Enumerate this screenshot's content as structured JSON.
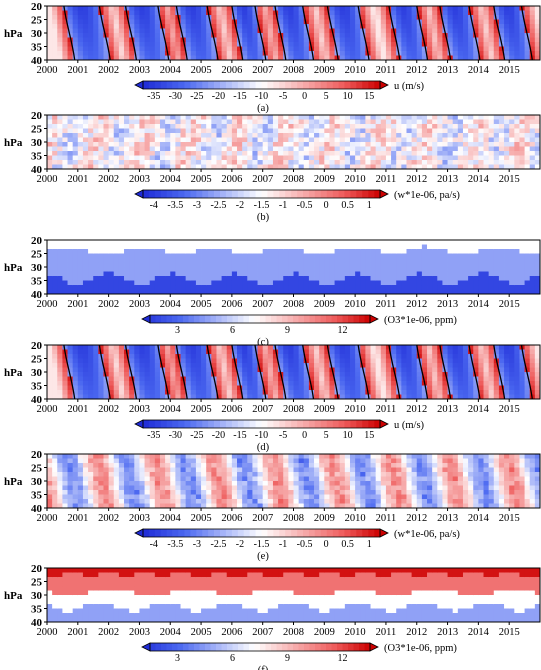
{
  "chart_data": [
    {
      "id": "a",
      "type": "heatmap",
      "caption": "(a)",
      "variable": "u",
      "ylabel": "hPa",
      "yticks": [
        "20",
        "25",
        "30",
        "35",
        "40"
      ],
      "xticks": [
        "2000",
        "2001",
        "2002",
        "2003",
        "2004",
        "2005",
        "2006",
        "2007",
        "2008",
        "2009",
        "2010",
        "2011",
        "2012",
        "2013",
        "2014",
        "2015"
      ],
      "colorbar_labels": [
        "-35",
        "-30",
        "-25",
        "-20",
        "-15",
        "-10",
        "-5",
        "0",
        "5",
        "10",
        "15"
      ],
      "colorbar_title": "u (m/s)",
      "colorbar_range": [
        -40,
        20
      ],
      "pattern": "qbo",
      "easterly_periods": [
        [
          2000.55,
          2001.7
        ],
        [
          2002.55,
          2003.6
        ],
        [
          2004.2,
          2005.2
        ],
        [
          2006.0,
          2006.75
        ],
        [
          2007.4,
          2008.3
        ],
        [
          2009.1,
          2010.1
        ],
        [
          2011.1,
          2012.0
        ],
        [
          2012.75,
          2013.7
        ],
        [
          2014.5,
          2015.4
        ]
      ]
    },
    {
      "id": "b",
      "type": "heatmap",
      "caption": "(b)",
      "variable": "w*1e-06",
      "ylabel": "hPa",
      "yticks": [
        "20",
        "25",
        "30",
        "35",
        "40"
      ],
      "xticks": [
        "2000",
        "2001",
        "2002",
        "2003",
        "2004",
        "2005",
        "2006",
        "2007",
        "2008",
        "2009",
        "2010",
        "2011",
        "2012",
        "2013",
        "2014",
        "2015"
      ],
      "colorbar_labels": [
        "-4",
        "-3.5",
        "-3",
        "-2.5",
        "-2",
        "-1.5",
        "-1",
        "-0.5",
        "0",
        "0.5",
        "1"
      ],
      "colorbar_title": "(w*1e-06, pa/s)",
      "colorbar_range": [
        -4.5,
        1.5
      ],
      "pattern": "weak"
    },
    {
      "id": "c",
      "type": "heatmap",
      "caption": "(c)",
      "variable": "O3*1e-06",
      "ylabel": "hPa",
      "yticks": [
        "20",
        "25",
        "30",
        "35",
        "40"
      ],
      "xticks": [
        "2000",
        "2001",
        "2002",
        "2003",
        "2004",
        "2005",
        "2006",
        "2007",
        "2008",
        "2009",
        "2010",
        "2011",
        "2012",
        "2013",
        "2014",
        "2015"
      ],
      "colorbar_labels": [
        "3",
        "6",
        "9",
        "12"
      ],
      "colorbar_title": "(O3*1e-06, ppm)",
      "colorbar_range": [
        1.5,
        13.5
      ],
      "pattern": "layered-low"
    },
    {
      "id": "d",
      "type": "heatmap",
      "caption": "(d)",
      "variable": "u",
      "ylabel": "hPa",
      "yticks": [
        "20",
        "25",
        "30",
        "35",
        "40"
      ],
      "xticks": [
        "2000",
        "2001",
        "2002",
        "2003",
        "2004",
        "2005",
        "2006",
        "2007",
        "2008",
        "2009",
        "2010",
        "2011",
        "2012",
        "2013",
        "2014",
        "2015"
      ],
      "colorbar_labels": [
        "-35",
        "-30",
        "-25",
        "-20",
        "-15",
        "-10",
        "-5",
        "0",
        "5",
        "10",
        "15"
      ],
      "colorbar_title": "u (m/s)",
      "colorbar_range": [
        -40,
        20
      ],
      "pattern": "qbo",
      "easterly_periods": [
        [
          2000.55,
          2001.7
        ],
        [
          2002.55,
          2003.6
        ],
        [
          2004.2,
          2005.2
        ],
        [
          2006.0,
          2006.75
        ],
        [
          2007.4,
          2008.3
        ],
        [
          2009.1,
          2010.1
        ],
        [
          2011.1,
          2012.0
        ],
        [
          2012.75,
          2013.7
        ],
        [
          2014.5,
          2015.4
        ]
      ]
    },
    {
      "id": "e",
      "type": "heatmap",
      "caption": "(e)",
      "variable": "w*1e-06",
      "ylabel": "hPa",
      "yticks": [
        "20",
        "25",
        "30",
        "35",
        "40"
      ],
      "xticks": [
        "2000",
        "2001",
        "2002",
        "2003",
        "2004",
        "2005",
        "2006",
        "2007",
        "2008",
        "2009",
        "2010",
        "2011",
        "2012",
        "2013",
        "2014",
        "2015"
      ],
      "colorbar_labels": [
        "-4",
        "-3.5",
        "-3",
        "-2.5",
        "-2",
        "-1.5",
        "-1",
        "-0.5",
        "0",
        "0.5",
        "1"
      ],
      "colorbar_title": "(w*1e-06, pa/s)",
      "colorbar_range": [
        -4.5,
        1.5
      ],
      "pattern": "bands"
    },
    {
      "id": "f",
      "type": "heatmap",
      "caption": "(f)",
      "variable": "O3*1e-06",
      "ylabel": "hPa",
      "yticks": [
        "20",
        "25",
        "30",
        "35",
        "40"
      ],
      "xticks": [
        "2000",
        "2001",
        "2002",
        "2003",
        "2004",
        "2005",
        "2006",
        "2007",
        "2008",
        "2009",
        "2010",
        "2011",
        "2012",
        "2013",
        "2014",
        "2015"
      ],
      "colorbar_labels": [
        "3",
        "6",
        "9",
        "12"
      ],
      "colorbar_title": "(O3*1e-06, ppm)",
      "colorbar_range": [
        1.5,
        13.5
      ],
      "pattern": "layered-high"
    }
  ]
}
